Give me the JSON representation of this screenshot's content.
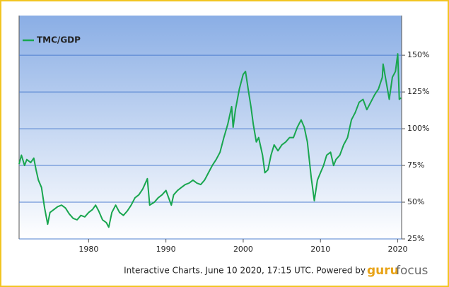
{
  "chart_data": {
    "type": "line",
    "x": [
      1971.0,
      1971.3,
      1971.7,
      1972.0,
      1972.5,
      1972.9,
      1973.2,
      1973.5,
      1973.9,
      1974.3,
      1974.7,
      1975.0,
      1975.5,
      1976.0,
      1976.5,
      1977.0,
      1977.5,
      1978.0,
      1978.5,
      1979.0,
      1979.5,
      1980.0,
      1980.5,
      1980.9,
      1981.3,
      1981.8,
      1982.3,
      1982.6,
      1983.0,
      1983.5,
      1984.0,
      1984.5,
      1985.0,
      1985.5,
      1986.0,
      1986.5,
      1987.0,
      1987.6,
      1987.9,
      1988.5,
      1989.0,
      1989.5,
      1990.0,
      1990.7,
      1991.0,
      1991.5,
      1992.0,
      1992.5,
      1993.0,
      1993.5,
      1994.0,
      1994.5,
      1995.0,
      1995.5,
      1996.0,
      1996.5,
      1997.0,
      1997.5,
      1998.0,
      1998.5,
      1998.7,
      1999.0,
      1999.5,
      2000.0,
      2000.3,
      2000.7,
      2001.0,
      2001.3,
      2001.7,
      2002.0,
      2002.5,
      2002.8,
      2003.2,
      2003.6,
      2004.0,
      2004.5,
      2005.0,
      2005.5,
      2006.0,
      2006.5,
      2007.0,
      2007.5,
      2007.9,
      2008.3,
      2008.8,
      2009.2,
      2009.6,
      2010.0,
      2010.4,
      2010.8,
      2011.3,
      2011.7,
      2012.0,
      2012.5,
      2013.0,
      2013.5,
      2014.0,
      2014.5,
      2015.0,
      2015.5,
      2016.0,
      2016.5,
      2017.0,
      2017.5,
      2018.0,
      2018.1,
      2018.9,
      2019.3,
      2019.7,
      2020.0,
      2020.2,
      2020.44
    ],
    "series": [
      {
        "name": "TMC/GDP",
        "color": "#19a64f",
        "values": [
          76,
          82,
          75,
          79,
          77,
          80,
          72,
          65,
          60,
          46,
          35,
          43,
          45,
          47,
          48,
          46,
          42,
          39,
          38,
          41,
          40,
          43,
          45,
          48,
          44,
          38,
          36,
          33,
          43,
          48,
          43,
          41,
          44,
          48,
          53,
          55,
          59,
          66,
          48,
          50,
          53,
          55,
          58,
          48,
          55,
          58,
          60,
          62,
          63,
          65,
          63,
          62,
          65,
          70,
          75,
          79,
          84,
          94,
          103,
          115,
          101,
          113,
          127,
          137,
          139,
          125,
          115,
          103,
          91,
          94,
          82,
          70,
          72,
          82,
          89,
          85,
          89,
          91,
          94,
          94,
          101,
          106,
          101,
          91,
          67,
          51,
          65,
          70,
          75,
          82,
          84,
          75,
          79,
          82,
          89,
          94,
          106,
          111,
          118,
          120,
          113,
          118,
          123,
          127,
          135,
          144,
          120,
          135,
          139,
          151,
          120,
          121
        ]
      }
    ],
    "xlim": [
      1971,
      2020.5
    ],
    "xticks": [
      1980,
      1990,
      2000,
      2010,
      2020
    ],
    "ylim": [
      25,
      177
    ],
    "yticks": [
      {
        "value": 25,
        "label": "25%"
      },
      {
        "value": 50,
        "label": "50%"
      },
      {
        "value": 75,
        "label": "75%"
      },
      {
        "value": 100,
        "label": "100%"
      },
      {
        "value": 125,
        "label": "125%"
      },
      {
        "value": 150,
        "label": "150%"
      }
    ],
    "grid": true,
    "legend": "top-left"
  },
  "credit": {
    "text": "Interactive Charts. June 10 2020, 17:15 UTC. Powered by",
    "brand_a": "guru",
    "brand_b": "focus"
  }
}
